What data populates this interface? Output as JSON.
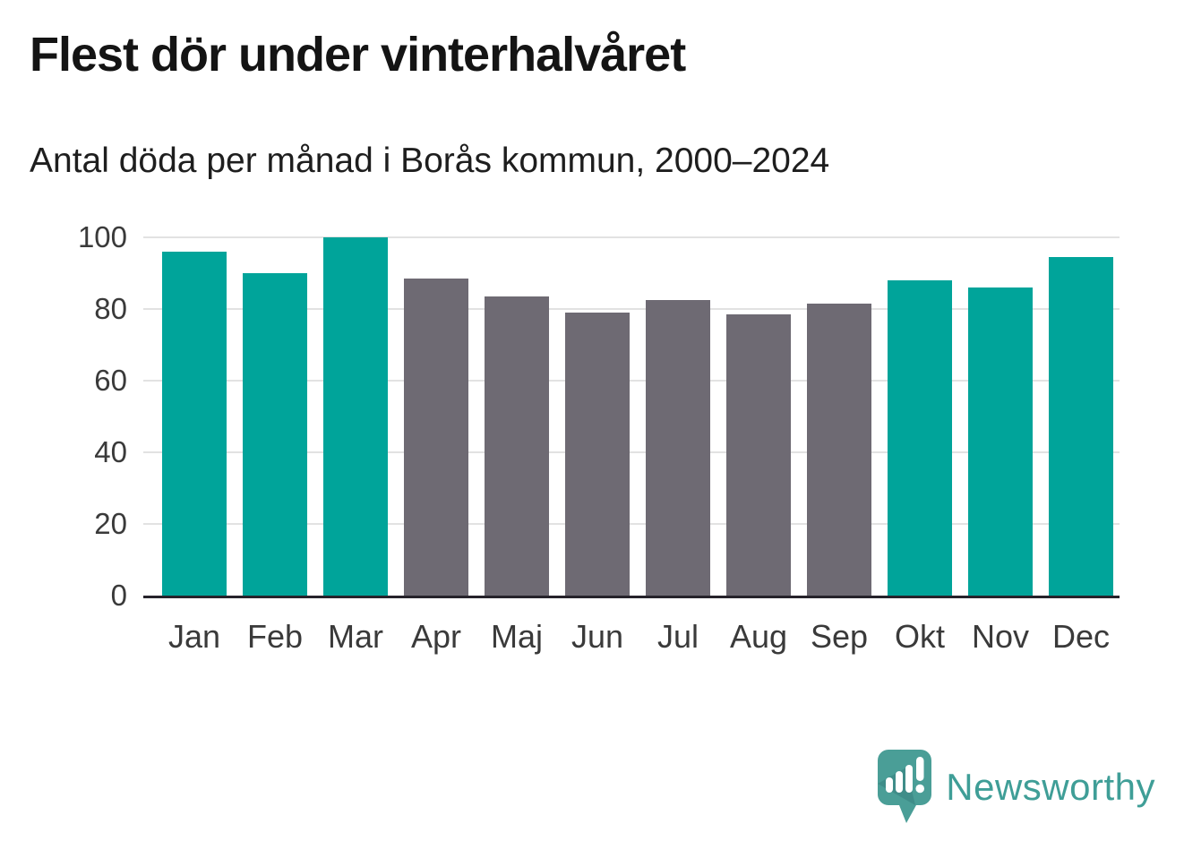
{
  "header": {
    "title": "Flest dör under vinterhalvåret",
    "subtitle": "Antal döda per månad i Borås kommun, 2000–2024"
  },
  "palette": {
    "teal": "#00a49a",
    "gray": "#6e6a73",
    "axis_line": "#26232b",
    "gridline": "#e2e2e2",
    "tick_label": "#3a3a3a",
    "title_color": "#141414",
    "background": "#ffffff",
    "logo_text": "#3f9e97",
    "logo_bubble": "#4a9e97",
    "logo_bubble_shade": "#37807e"
  },
  "chart_data": {
    "type": "bar",
    "title": "Flest dör under vinterhalvåret",
    "subtitle": "Antal döda per månad i Borås kommun, 2000–2024",
    "categories": [
      "Jan",
      "Feb",
      "Mar",
      "Apr",
      "Maj",
      "Jun",
      "Jul",
      "Aug",
      "Sep",
      "Okt",
      "Nov",
      "Dec"
    ],
    "values": [
      96,
      90,
      100,
      88.5,
      83.5,
      79,
      82.5,
      78.5,
      81.5,
      88,
      86,
      94.5
    ],
    "bar_colors": [
      "teal",
      "teal",
      "teal",
      "gray",
      "gray",
      "gray",
      "gray",
      "gray",
      "gray",
      "teal",
      "teal",
      "teal"
    ],
    "xlabel": "",
    "ylabel": "",
    "ylim": [
      0,
      100
    ],
    "yticks": [
      0,
      20,
      40,
      60,
      80,
      100
    ],
    "grid": true,
    "legend_position": "none"
  },
  "footer": {
    "brand": "Newsworthy",
    "logo_icon": "newsworthy-speech-bubble-chart-icon"
  }
}
